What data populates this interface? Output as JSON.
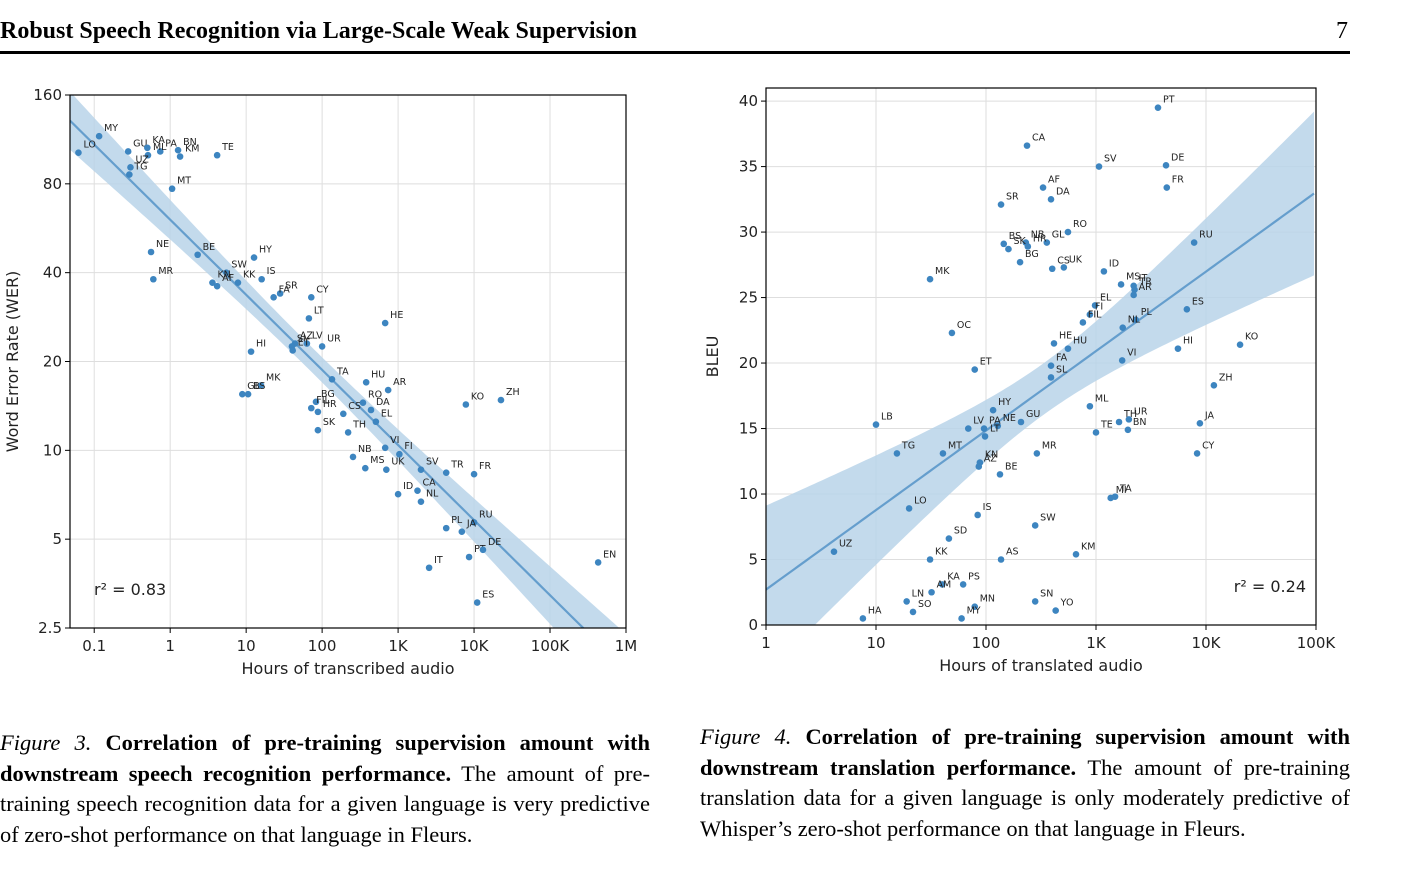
{
  "header": {
    "title": "Robust Speech Recognition via Large-Scale Weak Supervision",
    "page_number": "7"
  },
  "chart_data": [
    {
      "type": "scatter",
      "xlabel": "Hours of transcribed audio",
      "ylabel": "Word Error Rate (WER)",
      "xscale": "log",
      "yscale": "log",
      "grid": true,
      "color": "#3d85c0",
      "band_color": "#b9d3e9",
      "regression": "log",
      "annotation": "r² = 0.83",
      "annotation_corner": "lower left",
      "xlim": [
        0.048,
        1000000
      ],
      "ylim": [
        2.5,
        160
      ],
      "xticks": [
        0.1,
        1,
        10,
        100,
        {
          "value": 1000,
          "label": "1K"
        },
        {
          "value": 10000,
          "label": "10K"
        },
        {
          "value": 100000,
          "label": "100K"
        },
        {
          "value": 1000000,
          "label": "1M"
        }
      ],
      "yticks": [
        2.5,
        5,
        10,
        20,
        40,
        80,
        160
      ],
      "point_labels": [
        "LO",
        "MY",
        "GU",
        "KA",
        "PA",
        "BN",
        "KM",
        "ML",
        "UZ",
        "TG",
        "MT",
        "TE",
        "NE",
        "MR",
        "BE",
        "SW",
        "KN",
        "AF",
        "KK",
        "HY",
        "IS",
        "SR",
        "FA",
        "CY",
        "LT",
        "HE",
        "AZ",
        "SL",
        "LV",
        "UR",
        "ET",
        "HI",
        "TA",
        "HU",
        "AR",
        "MK",
        "GL",
        "BS",
        "BG",
        "FIL",
        "HR",
        "RO",
        "DA",
        "CS",
        "EL",
        "SK",
        "TH",
        "VI",
        "NB",
        "FI",
        "MS",
        "UK",
        "SV",
        "TR",
        "FR",
        "CA",
        "ID",
        "NL",
        "KO",
        "ZH",
        "PL",
        "RU",
        "JA",
        "PT",
        "DE",
        "IT",
        "ES",
        "EN"
      ],
      "x": [
        0.062,
        0.116,
        0.28,
        0.5,
        0.74,
        1.27,
        1.35,
        0.51,
        0.3,
        0.29,
        1.06,
        4.15,
        0.56,
        0.6,
        2.3,
        5.5,
        3.6,
        4.15,
        7.8,
        12.7,
        16,
        28,
        23,
        72,
        67,
        676,
        44,
        40,
        63,
        100,
        41,
        11.6,
        135,
        380,
        740,
        15.7,
        8.9,
        10.6,
        83,
        72,
        88,
        345,
        440,
        190,
        510,
        88,
        220,
        676,
        255,
        1040,
        370,
        700,
        2000,
        4300,
        10000,
        1800,
        1000,
        2000,
        7800,
        22600,
        4300,
        10000,
        6900,
        8600,
        13100,
        2560,
        11000,
        430000
      ],
      "values": [
        102,
        116,
        103,
        106,
        103,
        104,
        99,
        100,
        91,
        86,
        77,
        100,
        47,
        38,
        46,
        40,
        37,
        36,
        37,
        45,
        38,
        34,
        33,
        33,
        28,
        27,
        23,
        22.5,
        23,
        22.5,
        21.8,
        21.6,
        17.4,
        17,
        16,
        16.6,
        15.5,
        15.5,
        14.6,
        13.9,
        13.5,
        14.5,
        13.7,
        13.3,
        12.5,
        11.7,
        11.5,
        10.2,
        9.5,
        9.7,
        8.7,
        8.6,
        8.6,
        8.4,
        8.3,
        7.3,
        7.1,
        6.7,
        14.3,
        14.8,
        5.45,
        5.7,
        5.3,
        4.35,
        4.6,
        4.0,
        3.05,
        4.17
      ]
    },
    {
      "type": "scatter",
      "xlabel": "Hours of translated audio",
      "ylabel": "BLEU",
      "xscale": "log",
      "yscale": "linear",
      "grid": true,
      "color": "#3d85c0",
      "band_color": "#b9d3e9",
      "regression": "linear",
      "annotation": "r² = 0.24",
      "annotation_corner": "lower right",
      "xlim": [
        1,
        100000
      ],
      "ylim": [
        0,
        41
      ],
      "xticks": [
        1,
        10,
        100,
        {
          "value": 1000,
          "label": "1K"
        },
        {
          "value": 10000,
          "label": "10K"
        },
        {
          "value": 100000,
          "label": "100K"
        }
      ],
      "yticks": [
        0,
        5,
        10,
        15,
        20,
        25,
        30,
        35,
        40
      ],
      "point_labels": [
        "PT",
        "CA",
        "SV",
        "DE",
        "FR",
        "AF",
        "DA",
        "SR",
        "RO",
        "BS",
        "NB",
        "GL",
        "SK",
        "HR",
        "RU",
        "BG",
        "CS",
        "UK",
        "ID",
        "MK",
        "MS",
        "IT",
        "TR",
        "AR",
        "EL",
        "ES",
        "PL",
        "FI",
        "FIL",
        "NL",
        "OC",
        "KO",
        "HI",
        "HE",
        "HU",
        "VI",
        "FA",
        "ET",
        "SL",
        "ZH",
        "ML",
        "HY",
        "TH",
        "UR",
        "JA",
        "GU",
        "NE",
        "LV",
        "PA",
        "TE",
        "BN",
        "LT",
        "LB",
        "TG",
        "MT",
        "MR",
        "CY",
        "KN",
        "AZ",
        "BE",
        "LO",
        "MI",
        "TA",
        "IS",
        "SW",
        "SD",
        "UZ",
        "KK",
        "AS",
        "KM",
        "KA",
        "PS",
        "AM",
        "LN",
        "SO",
        "MN",
        "MY",
        "SN",
        "YO",
        "HA"
      ],
      "x": [
        3660,
        236,
        1065,
        4330,
        4400,
        330,
        390,
        137,
        556,
        145,
        230,
        357,
        160,
        240,
        7800,
        204,
        400,
        510,
        1180,
        31,
        1690,
        2200,
        2240,
        2200,
        980,
        6700,
        2300,
        880,
        760,
        1750,
        49,
        20400,
        5560,
        415,
        556,
        1730,
        390,
        79,
        390,
        11800,
        880,
        116,
        1620,
        1990,
        8800,
        208,
        128,
        69,
        96,
        1000,
        1950,
        98,
        10,
        15.5,
        40.6,
        290,
        8300,
        88,
        86,
        134,
        20,
        1360,
        1490,
        84,
        280,
        46,
        4.15,
        31,
        137,
        658,
        40,
        62,
        32,
        19,
        21.7,
        79,
        60,
        280,
        430,
        7.6
      ],
      "values": [
        39.5,
        36.6,
        35.0,
        35.1,
        33.4,
        33.4,
        32.5,
        32.1,
        30.0,
        29.1,
        29.2,
        29.2,
        28.7,
        28.9,
        29.2,
        27.7,
        27.2,
        27.3,
        27.0,
        26.4,
        26.0,
        25.9,
        25.6,
        25.2,
        24.4,
        24.1,
        23.3,
        23.7,
        23.1,
        22.7,
        22.3,
        21.4,
        21.1,
        21.5,
        21.1,
        20.2,
        19.8,
        19.5,
        18.9,
        18.3,
        16.7,
        16.4,
        15.5,
        15.7,
        15.4,
        15.5,
        15.2,
        15.0,
        15.0,
        14.7,
        14.9,
        14.4,
        15.3,
        13.1,
        13.1,
        13.1,
        13.1,
        12.4,
        12.1,
        11.5,
        8.9,
        9.7,
        9.8,
        8.4,
        7.6,
        6.6,
        5.6,
        5.0,
        5.0,
        5.4,
        3.1,
        3.1,
        2.5,
        1.8,
        1.0,
        1.4,
        0.5,
        1.8,
        1.1,
        0.5
      ]
    }
  ],
  "captions": [
    {
      "label": "Figure 3.",
      "bold": "Correlation of pre-training supervision amount with downstream speech recognition performance.",
      "text": "The amount of pre-training speech recognition data for a given language is very predictive of zero-shot performance on that language in Fleurs."
    },
    {
      "label": "Figure 4.",
      "bold": "Correlation of pre-training supervision amount with downstream translation performance.",
      "text": "The amount of pre-training translation data for a given language is only moderately predictive of Whisper’s zero-shot performance on that language in Fleurs."
    }
  ]
}
